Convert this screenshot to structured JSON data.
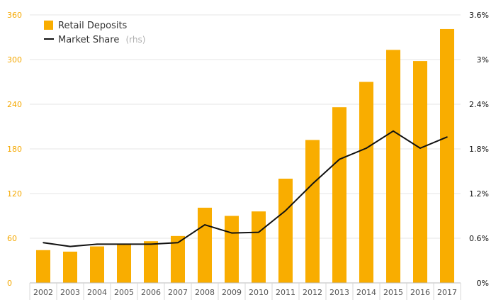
{
  "chart_data": {
    "type": "bar+line",
    "title": "",
    "categories": [
      "2002",
      "2003",
      "2004",
      "2005",
      "2006",
      "2007",
      "2008",
      "2009",
      "2010",
      "2011",
      "2012",
      "2013",
      "2014",
      "2015",
      "2016",
      "2017"
    ],
    "series": [
      {
        "name": "Retail Deposits",
        "type": "bar",
        "axis": "left",
        "color": "#f9ad00",
        "values": [
          44,
          42,
          49,
          52,
          56,
          63,
          101,
          90,
          96,
          140,
          192,
          236,
          270,
          313,
          298,
          341
        ]
      },
      {
        "name": "Market Share",
        "type": "line",
        "axis": "right",
        "color": "#111111",
        "values": [
          0.54,
          0.49,
          0.52,
          0.52,
          0.52,
          0.54,
          0.78,
          0.67,
          0.68,
          0.97,
          1.33,
          1.66,
          1.81,
          2.04,
          1.81,
          1.96
        ]
      }
    ],
    "legend": [
      {
        "label": "Retail Deposits",
        "suffix": ""
      },
      {
        "label": "Market Share",
        "suffix": "(rhs)"
      }
    ],
    "left_axis": {
      "ylim": [
        0,
        360
      ],
      "ticks": [
        "0",
        "60",
        "120",
        "180",
        "240",
        "300",
        "360"
      ]
    },
    "right_axis": {
      "ylim": [
        0,
        3.6
      ],
      "ticks": [
        "0%",
        "0.6%",
        "1.2%",
        "1.8%",
        "2.4%",
        "3%",
        "3.6%"
      ]
    },
    "legend_position": "top-left",
    "grid": true
  }
}
